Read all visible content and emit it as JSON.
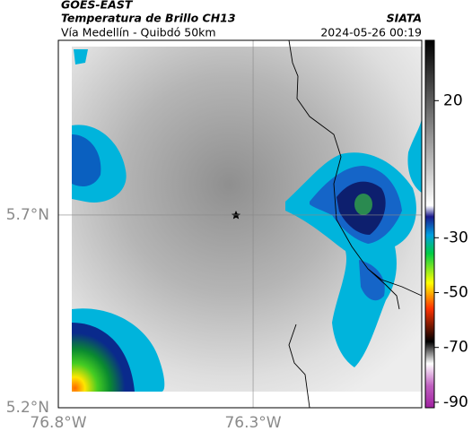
{
  "header": {
    "satellite": "GOES-EAST",
    "product": "Temperatura de Brillo CH13",
    "source": "SIATA",
    "subtitle": "Vía Medellín - Quibdó 50km",
    "timestamp": "2024-05-26 00:19"
  },
  "map": {
    "xlim": [
      -76.8,
      -75.867
    ],
    "ylim": [
      5.2,
      6.153
    ],
    "xticks": [
      {
        "value": -76.8,
        "label": "76.8°W"
      },
      {
        "value": -76.3,
        "label": "76.3°W"
      }
    ],
    "yticks": [
      {
        "value": 5.2,
        "label": "5.2°N"
      },
      {
        "value": 5.7,
        "label": "5.7°N"
      }
    ],
    "grid": true
  },
  "colorbar": {
    "lim": [
      -92,
      42
    ],
    "ticks": [
      20,
      -30,
      -50,
      -70,
      -90
    ]
  }
}
